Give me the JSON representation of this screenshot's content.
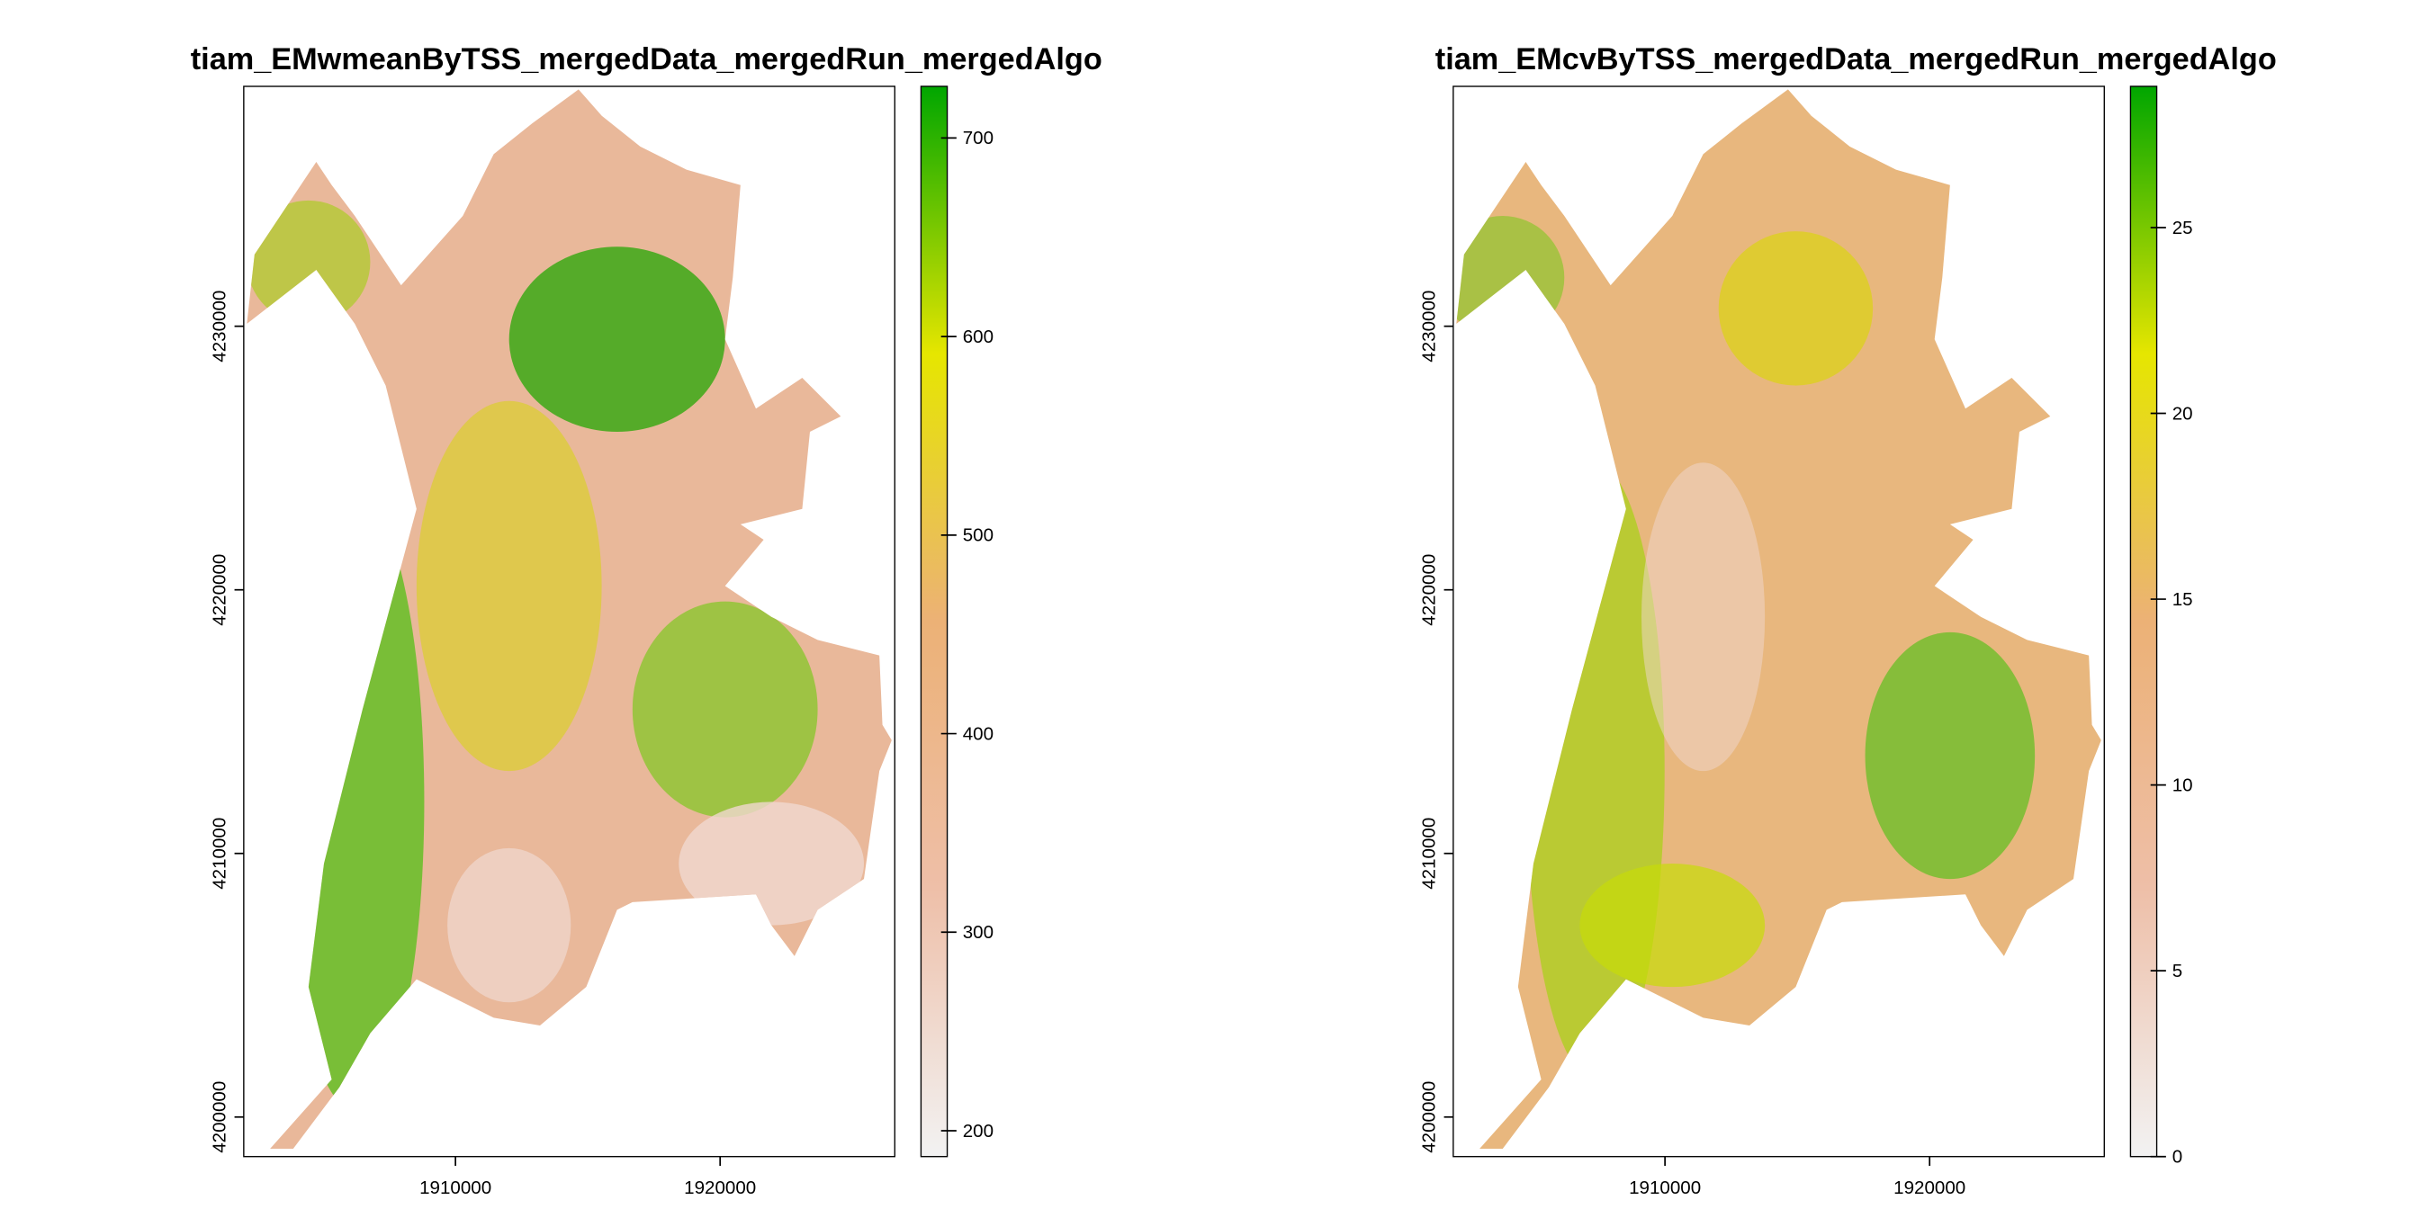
{
  "maps": [
    {
      "title": "tiam_EMwmeanByTSS_mergedData_mergedRun_mergedAlgo",
      "xlim": [
        1902000,
        1926600
      ],
      "ylim": [
        4198500,
        4239100
      ],
      "xticks": [
        1910000,
        1920000
      ],
      "yticks": [
        4200000,
        4210000,
        4220000,
        4230000
      ],
      "colorbar": {
        "lim": [
          187,
          726
        ],
        "ticks": [
          200,
          300,
          400,
          500,
          600,
          700
        ],
        "colors": [
          "#f2f2f2",
          "#eebfa8",
          "#ecb176",
          "#e6e600",
          "#00a600"
        ]
      }
    },
    {
      "title": "tiam_EMcvByTSS_mergedData_mergedRun_mergedAlgo",
      "xlim": [
        1902000,
        1926600
      ],
      "ylim": [
        4198500,
        4239100
      ],
      "xticks": [
        1910000,
        1920000
      ],
      "yticks": [
        4200000,
        4210000,
        4220000,
        4230000
      ],
      "colorbar": {
        "lim": [
          0,
          28.8
        ],
        "ticks": [
          0,
          5,
          10,
          15,
          20,
          25
        ],
        "colors": [
          "#f2f2f2",
          "#eebfa8",
          "#ecb176",
          "#e6e600",
          "#00a600"
        ]
      }
    }
  ]
}
